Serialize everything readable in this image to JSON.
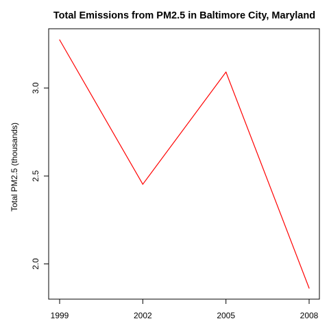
{
  "chart_data": {
    "type": "line",
    "title": "Total Emissions from PM2.5 in Baltimore City, Maryland",
    "xlabel": "",
    "ylabel": "Total PM2.5 (thousands)",
    "x": [
      1999,
      2002,
      2005,
      2008
    ],
    "x_ticks": [
      "1999",
      "2002",
      "2005",
      "2008"
    ],
    "y_ticks": [
      "2.0",
      "2.5",
      "3.0"
    ],
    "y_tick_values": [
      2.0,
      2.5,
      3.0
    ],
    "xlim": [
      1999,
      2008
    ],
    "ylim": [
      1.862,
      3.275
    ],
    "series": [
      {
        "values": [
          3.274,
          2.453,
          3.091,
          1.862
        ],
        "color": "#ff0000"
      }
    ],
    "grid": false,
    "legend": "none",
    "colors": {
      "line": "#ff0000",
      "axis": "#000000",
      "background": "#ffffff"
    }
  }
}
